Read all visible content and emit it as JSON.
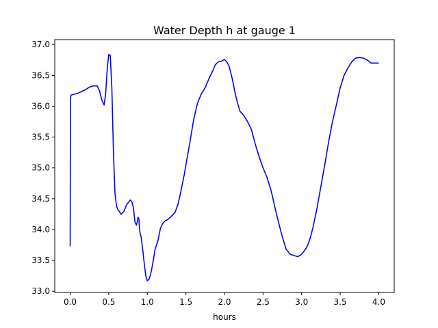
{
  "chart_data": {
    "type": "line",
    "title": "Water Depth h at gauge 1",
    "xlabel": "hours",
    "ylabel": "",
    "xlim": [
      -0.2,
      4.2
    ],
    "ylim": [
      32.98,
      37.08
    ],
    "grid": false,
    "legend": "none",
    "xticks": [
      0.0,
      0.5,
      1.0,
      1.5,
      2.0,
      2.5,
      3.0,
      3.5,
      4.0
    ],
    "xtick_labels": [
      "0.0",
      "0.5",
      "1.0",
      "1.5",
      "2.0",
      "2.5",
      "3.0",
      "3.5",
      "4.0"
    ],
    "yticks": [
      33.0,
      33.5,
      34.0,
      34.5,
      35.0,
      35.5,
      36.0,
      36.5,
      37.0
    ],
    "ytick_labels": [
      "33.0",
      "33.5",
      "34.0",
      "34.5",
      "35.0",
      "35.5",
      "36.0",
      "36.5",
      "37.0"
    ],
    "series": [
      {
        "color": "#0000ff",
        "x": [
          0.0,
          0.003,
          0.01,
          0.1,
          0.2,
          0.25,
          0.3,
          0.35,
          0.38,
          0.41,
          0.44,
          0.46,
          0.48,
          0.5,
          0.52,
          0.54,
          0.56,
          0.58,
          0.6,
          0.62,
          0.64,
          0.66,
          0.7,
          0.73,
          0.76,
          0.78,
          0.8,
          0.82,
          0.84,
          0.86,
          0.88,
          0.89,
          0.9,
          0.91,
          0.92,
          0.94,
          0.96,
          0.98,
          1.0,
          1.02,
          1.04,
          1.06,
          1.08,
          1.1,
          1.12,
          1.14,
          1.17,
          1.2,
          1.23,
          1.26,
          1.3,
          1.33,
          1.36,
          1.4,
          1.44,
          1.48,
          1.5,
          1.55,
          1.6,
          1.65,
          1.7,
          1.75,
          1.8,
          1.85,
          1.88,
          1.92,
          1.96,
          2.0,
          2.03,
          2.06,
          2.08,
          2.1,
          2.12,
          2.14,
          2.17,
          2.2,
          2.25,
          2.3,
          2.35,
          2.4,
          2.45,
          2.5,
          2.55,
          2.6,
          2.62,
          2.65,
          2.7,
          2.75,
          2.8,
          2.85,
          2.9,
          2.95,
          3.0,
          3.05,
          3.08,
          3.1,
          3.12,
          3.15,
          3.2,
          3.25,
          3.3,
          3.35,
          3.4,
          3.45,
          3.5,
          3.55,
          3.6,
          3.65,
          3.7,
          3.75,
          3.8,
          3.85,
          3.9,
          3.95,
          4.0
        ],
        "y": [
          33.73,
          36.1,
          36.18,
          36.21,
          36.27,
          36.31,
          36.33,
          36.33,
          36.25,
          36.1,
          36.02,
          36.2,
          36.6,
          36.84,
          36.82,
          36.3,
          35.3,
          34.6,
          34.38,
          34.32,
          34.29,
          34.25,
          34.3,
          34.4,
          34.45,
          34.48,
          34.45,
          34.35,
          34.12,
          34.07,
          34.2,
          34.18,
          34.0,
          33.92,
          33.88,
          33.68,
          33.45,
          33.25,
          33.17,
          33.19,
          33.26,
          33.38,
          33.52,
          33.68,
          33.75,
          33.83,
          34.02,
          34.1,
          34.14,
          34.16,
          34.2,
          34.24,
          34.28,
          34.42,
          34.65,
          34.9,
          35.05,
          35.4,
          35.78,
          36.05,
          36.2,
          36.3,
          36.45,
          36.58,
          36.67,
          36.72,
          36.73,
          36.76,
          36.72,
          36.65,
          36.55,
          36.45,
          36.33,
          36.2,
          36.05,
          35.92,
          35.85,
          35.75,
          35.62,
          35.38,
          35.18,
          35.0,
          34.85,
          34.65,
          34.55,
          34.38,
          34.12,
          33.88,
          33.68,
          33.6,
          33.58,
          33.56,
          33.6,
          33.68,
          33.75,
          33.82,
          33.9,
          34.05,
          34.35,
          34.7,
          35.05,
          35.42,
          35.75,
          36.02,
          36.3,
          36.5,
          36.62,
          36.72,
          36.78,
          36.79,
          36.78,
          36.75,
          36.7,
          36.7,
          36.7
        ]
      }
    ]
  }
}
